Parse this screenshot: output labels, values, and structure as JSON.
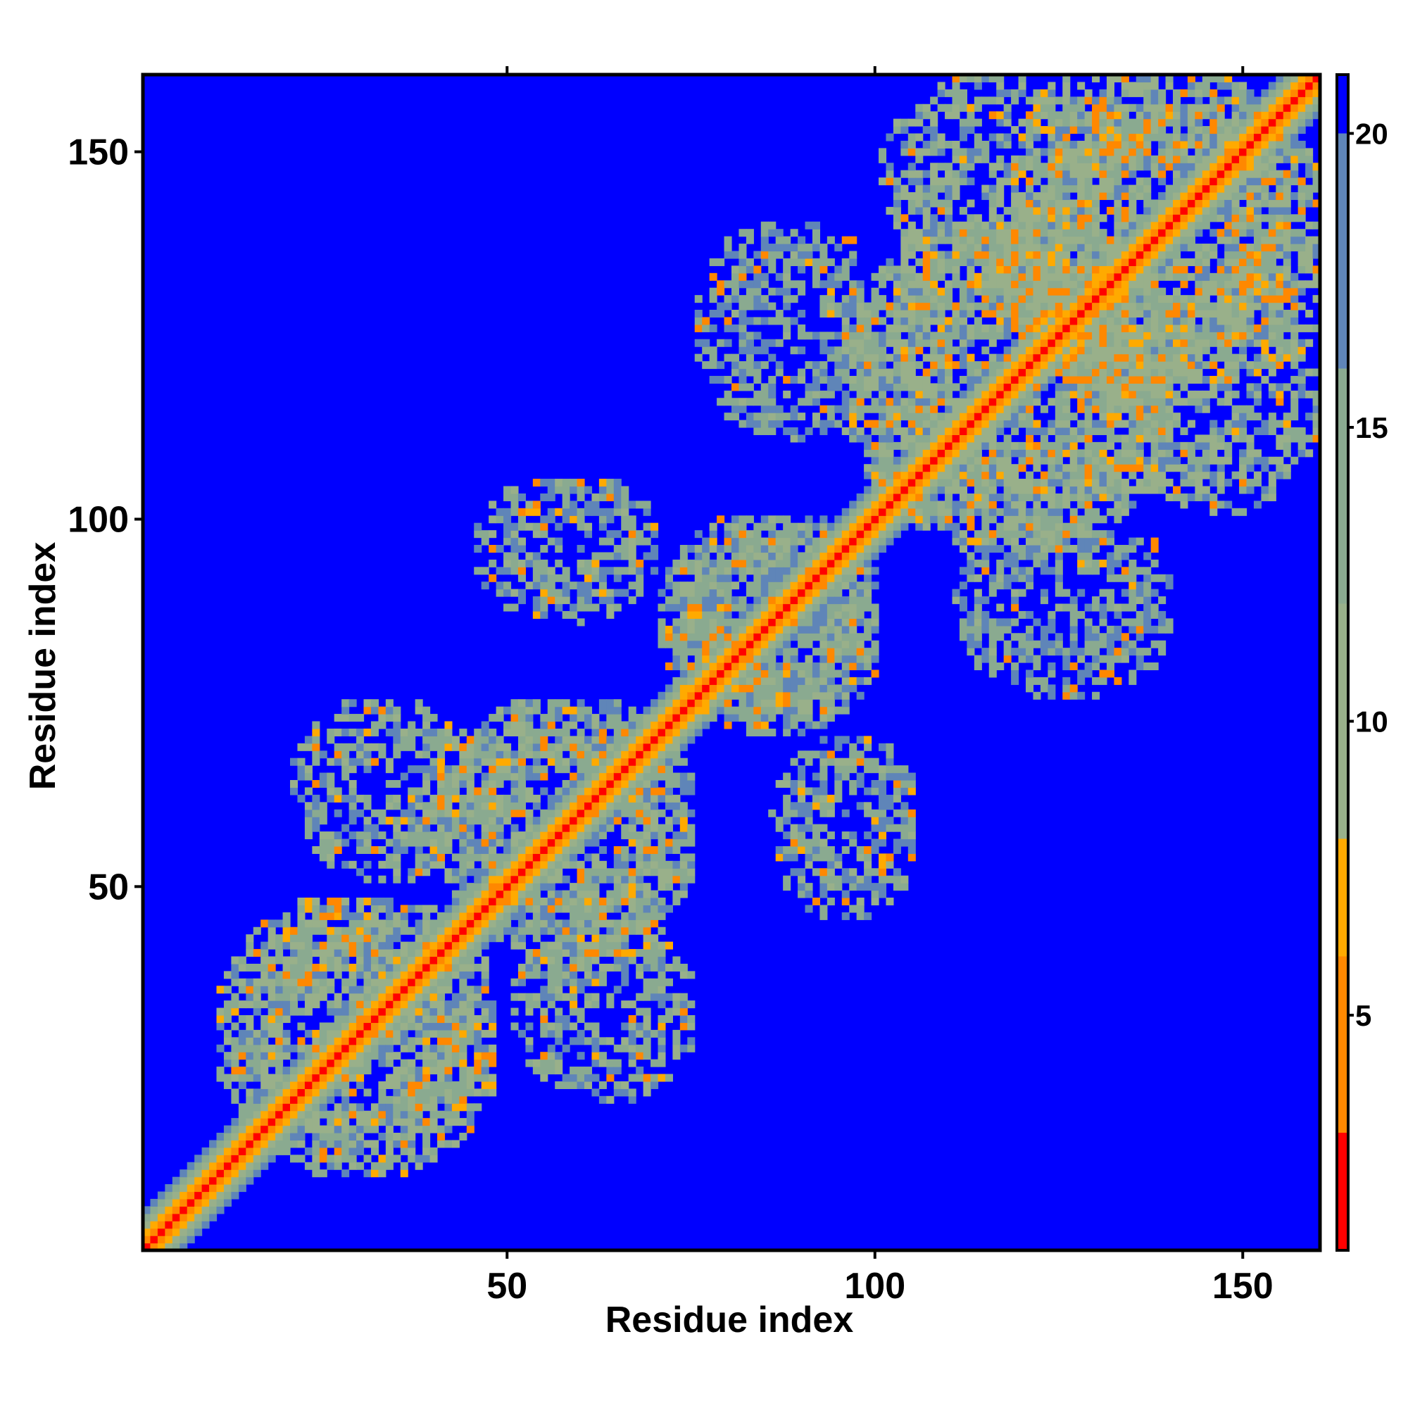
{
  "chart_data": {
    "type": "heatmap",
    "title": "",
    "xlabel": "Residue index",
    "ylabel": "Residue index",
    "n_residues": 160,
    "xlim": [
      1,
      160
    ],
    "ylim": [
      1,
      160
    ],
    "x_ticks": [
      50,
      100,
      150
    ],
    "y_ticks": [
      50,
      100,
      150
    ],
    "x_tick_labels": [
      "50",
      "100",
      "150"
    ],
    "y_tick_labels": [
      "50",
      "100",
      "150"
    ],
    "colorbar": {
      "range": [
        1,
        21
      ],
      "ticks": [
        5,
        10,
        15,
        20
      ],
      "tick_labels": [
        "5",
        "10",
        "15",
        "20"
      ],
      "placement": "right"
    },
    "value_cap": 21,
    "color_bins": [
      {
        "max": 3,
        "color": "#ff0000"
      },
      {
        "max": 6,
        "color": "#ff8800"
      },
      {
        "max": 8,
        "color": "#ffaa00"
      },
      {
        "max": 12,
        "color": "#99b08a"
      },
      {
        "max": 16,
        "color": "#8aaa90"
      },
      {
        "max": 20,
        "color": "#5f85b8"
      },
      {
        "max": 21,
        "color": "#0000ff"
      }
    ],
    "colors": {
      "background": "#0000ff",
      "near": "#ff0000",
      "mid": "#ffa500",
      "far": "#8fb090",
      "max": "#0000ff"
    },
    "contact_blocks": [
      {
        "i": [
          10,
          48
        ],
        "j": [
          10,
          48
        ],
        "min_value": 7
      },
      {
        "i": [
          40,
          75
        ],
        "j": [
          40,
          75
        ],
        "min_value": 9
      },
      {
        "i": [
          70,
          100
        ],
        "j": [
          70,
          100
        ],
        "min_value": 9
      },
      {
        "i": [
          95,
          140
        ],
        "j": [
          95,
          140
        ],
        "min_value": 7
      },
      {
        "i": [
          115,
          160
        ],
        "j": [
          115,
          160
        ],
        "min_value": 7
      },
      {
        "i": [
          20,
          45
        ],
        "j": [
          50,
          75
        ],
        "min_value": 8
      },
      {
        "i": [
          45,
          70
        ],
        "j": [
          85,
          105
        ],
        "min_value": 9
      },
      {
        "i": [
          75,
          100
        ],
        "j": [
          110,
          140
        ],
        "min_value": 10
      },
      {
        "i": [
          100,
          135
        ],
        "j": [
          130,
          160
        ],
        "min_value": 7
      }
    ],
    "diagonal_band": {
      "width_residues": 5,
      "value_at_diagonal": 1,
      "value_at_edge": 18
    }
  }
}
